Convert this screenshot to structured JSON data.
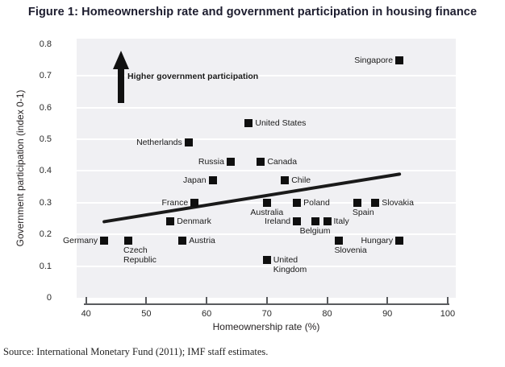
{
  "title": "Figure 1: Homeownership rate and government participation in housing finance",
  "source": "Source: International Monetary Fund (2011); IMF staff estimates.",
  "colors": {
    "marker": "#0f0f0f",
    "plot_background": "#f0f0f3",
    "gridline": "#ffffff",
    "trend_line": "#1a1a1a",
    "axis": "#595b5e",
    "title_text": "#1c1c2e"
  },
  "chart_data": {
    "type": "scatter",
    "title": "Figure 1: Homeownership rate and government participation in housing finance",
    "xlabel": "Homeownership rate (%)",
    "ylabel": "Government participation (index 0-1)",
    "xlim": [
      38,
      101
    ],
    "ylim": [
      0,
      0.8
    ],
    "x_ticks": [
      40,
      50,
      60,
      70,
      80,
      90,
      100
    ],
    "y_ticks": [
      {
        "value": 0,
        "label": "0"
      },
      {
        "value": 0.1,
        "label": "0.1"
      },
      {
        "value": 0.2,
        "label": "0.2"
      },
      {
        "value": 0.3,
        "label": "0.3"
      },
      {
        "value": 0.4,
        "label": "0.4"
      },
      {
        "value": 0.5,
        "label": "0.5"
      },
      {
        "value": 0.6,
        "label": "0.6"
      },
      {
        "value": 0.7,
        "label": "0.7"
      },
      {
        "value": 0.8,
        "label": "0.8"
      }
    ],
    "grid": "horizontal-white-on-gray-band",
    "legend": "none",
    "annotation": {
      "text": "Higher government participation",
      "arrow": "vertical-up",
      "arrow_x": 45.8,
      "arrow_y_from": 0.615,
      "arrow_y_to": 0.78
    },
    "trendline": {
      "x1": 43,
      "y1": 0.24,
      "x2": 92,
      "y2": 0.39
    },
    "points": [
      {
        "name": "Singapore",
        "x": 92,
        "y": 0.75,
        "label_side": "left"
      },
      {
        "name": "United States",
        "x": 67,
        "y": 0.55,
        "label_side": "right"
      },
      {
        "name": "Netherlands",
        "x": 57,
        "y": 0.49,
        "label_side": "left"
      },
      {
        "name": "Russia",
        "x": 64,
        "y": 0.43,
        "label_side": "left"
      },
      {
        "name": "Canada",
        "x": 69,
        "y": 0.43,
        "label_side": "right"
      },
      {
        "name": "Japan",
        "x": 61,
        "y": 0.37,
        "label_side": "left"
      },
      {
        "name": "Chile",
        "x": 73,
        "y": 0.37,
        "label_side": "right"
      },
      {
        "name": "France",
        "x": 58,
        "y": 0.3,
        "label_side": "left"
      },
      {
        "name": "Australia",
        "x": 70,
        "y": 0.3,
        "label_side": "below"
      },
      {
        "name": "Poland",
        "x": 75,
        "y": 0.3,
        "label_side": "right"
      },
      {
        "name": "Spain",
        "x": 85,
        "y": 0.3,
        "label_side": "below-left"
      },
      {
        "name": "Slovakia",
        "x": 88,
        "y": 0.3,
        "label_side": "right"
      },
      {
        "name": "Denmark",
        "x": 54,
        "y": 0.24,
        "label_side": "right"
      },
      {
        "name": "Ireland",
        "x": 75,
        "y": 0.24,
        "label_side": "left"
      },
      {
        "name": "Belgium",
        "x": 78,
        "y": 0.24,
        "label_side": "below"
      },
      {
        "name": "Italy",
        "x": 80,
        "y": 0.24,
        "label_side": "right"
      },
      {
        "name": "Germany",
        "x": 43,
        "y": 0.18,
        "label_side": "left"
      },
      {
        "name": "Czech Republic",
        "x": 47,
        "y": 0.18,
        "label_side": "below-left",
        "display": "Czech\nRepublic"
      },
      {
        "name": "Austria",
        "x": 56,
        "y": 0.18,
        "label_side": "right"
      },
      {
        "name": "Slovenia",
        "x": 82,
        "y": 0.18,
        "label_side": "below-left"
      },
      {
        "name": "Hungary",
        "x": 92,
        "y": 0.18,
        "label_side": "left"
      },
      {
        "name": "United Kingdom",
        "x": 70,
        "y": 0.12,
        "label_side": "right",
        "display": "United\nKingdom"
      }
    ]
  }
}
